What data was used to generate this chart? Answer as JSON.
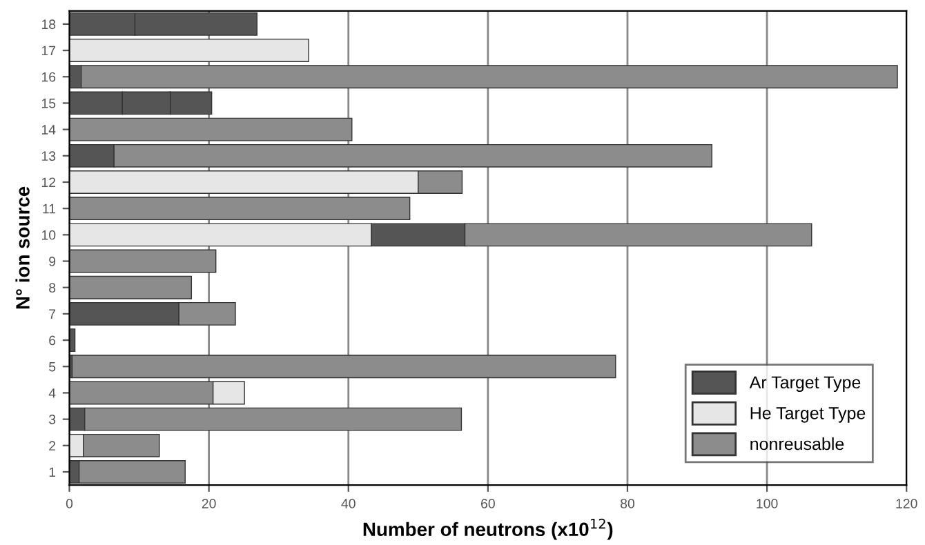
{
  "chart_data": {
    "type": "bar",
    "orientation": "horizontal",
    "stacked": true,
    "xlabel": "Number of neutrons (x10$^{12}$)",
    "ylabel": "N° ion source",
    "categories": [
      "18",
      "17",
      "16",
      "15",
      "14",
      "13",
      "12",
      "11",
      "10",
      "9",
      "8",
      "7",
      "6",
      "5",
      "4",
      "3",
      "2",
      "1"
    ],
    "series": [
      {
        "name": "Ar Target Type",
        "color": "#555555",
        "values": [
          9.4,
          null,
          1.7,
          7.6,
          null,
          6.4,
          null,
          null,
          null,
          null,
          null,
          15.7,
          0.8,
          0.4,
          null,
          2.2,
          null,
          1.4
        ]
      },
      {
        "name": "He Target Type",
        "color": "#e6e6e6",
        "values": [
          null,
          34.3,
          null,
          null,
          null,
          null,
          50.0,
          null,
          43.3,
          null,
          null,
          null,
          null,
          null,
          null,
          null,
          2.0,
          null
        ]
      },
      {
        "color": "#555555",
        "values": [
          17.5,
          null,
          null,
          6.9,
          null,
          null,
          null,
          null,
          13.4,
          null,
          null,
          null,
          null,
          null,
          null,
          null,
          null,
          null
        ]
      },
      {
        "color": "#555555",
        "values": [
          null,
          null,
          null,
          5.9,
          null,
          null,
          null,
          null,
          null,
          null,
          null,
          null,
          null,
          null,
          null,
          null,
          null,
          null
        ]
      },
      {
        "name": "nonreusable",
        "color": "#8c8c8c",
        "values": [
          null,
          null,
          117.0,
          null,
          40.5,
          85.7,
          6.3,
          48.8,
          49.7,
          21.0,
          17.5,
          8.1,
          null,
          77.9,
          20.6,
          54.0,
          10.9,
          15.2
        ]
      },
      {
        "color": "#e6e6e6",
        "values": [
          null,
          null,
          null,
          null,
          null,
          null,
          null,
          null,
          null,
          null,
          null,
          null,
          null,
          null,
          4.5,
          null,
          null,
          null
        ]
      }
    ],
    "xlim": [
      0,
      120
    ],
    "xticks": [
      0,
      20,
      40,
      60,
      80,
      100,
      120
    ],
    "grid": "x",
    "legend": "bottom right"
  }
}
